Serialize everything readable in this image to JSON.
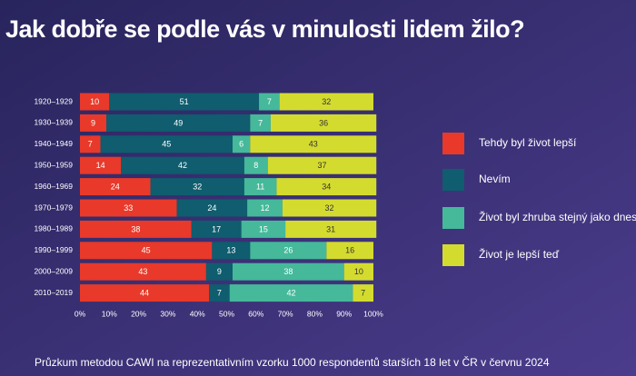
{
  "chart_data": {
    "type": "bar",
    "orientation": "horizontal",
    "stacked": true,
    "title": "Jak dobře se podle vás v minulosti lidem žilo?",
    "footnote": "Průzkum metodou CAWI na reprezentativním vzorku 1000 respondentů starších 18 let v ČR v červnu 2024",
    "categories": [
      "1920–1929",
      "1930–1939",
      "1940–1949",
      "1950–1959",
      "1960–1969",
      "1970–1979",
      "1980–1989",
      "1990–1999",
      "2000–2009",
      "2010–2019"
    ],
    "series": [
      {
        "name": "Tehdy byl život lepší",
        "color": "#e8392a",
        "values": [
          10,
          9,
          7,
          14,
          24,
          33,
          38,
          45,
          43,
          44
        ]
      },
      {
        "name": "Nevím",
        "color": "#0f5d6e",
        "values": [
          51,
          49,
          45,
          42,
          32,
          24,
          17,
          13,
          9,
          7
        ]
      },
      {
        "name": "Život byl zhruba stejný jako dnes",
        "color": "#45b99a",
        "values": [
          7,
          7,
          6,
          8,
          11,
          12,
          15,
          26,
          38,
          42
        ]
      },
      {
        "name": "Život je lepší teď",
        "color": "#d4db2f",
        "values": [
          32,
          36,
          43,
          37,
          34,
          32,
          31,
          16,
          10,
          7
        ]
      }
    ],
    "xlim": [
      0,
      100
    ],
    "xticks": [
      {
        "value": 0,
        "label": "0%"
      },
      {
        "value": 10,
        "label": "10%"
      },
      {
        "value": 20,
        "label": "20%"
      },
      {
        "value": 30,
        "label": "30%"
      },
      {
        "value": 40,
        "label": "40%"
      },
      {
        "value": 50,
        "label": "50%"
      },
      {
        "value": 60,
        "label": "60%"
      },
      {
        "value": 70,
        "label": "70%"
      },
      {
        "value": 80,
        "label": "80%"
      },
      {
        "value": 90,
        "label": "90%"
      },
      {
        "value": 100,
        "label": "100%"
      }
    ],
    "legend": "right"
  }
}
